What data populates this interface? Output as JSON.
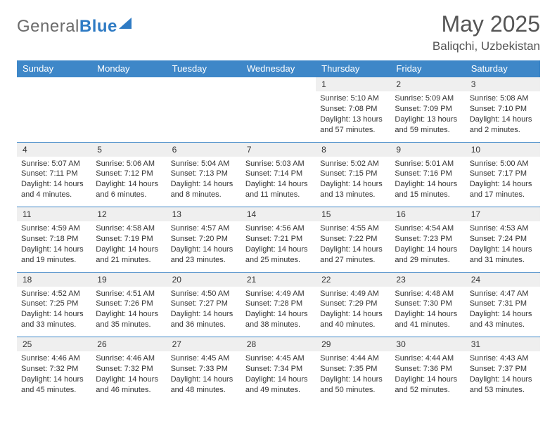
{
  "logo": {
    "text_gray": "General",
    "text_blue": "Blue"
  },
  "title": "May 2025",
  "location": "Baliqchi, Uzbekistan",
  "colors": {
    "header_bg": "#3e87c8",
    "header_text": "#ffffff",
    "daynum_bg": "#efefef",
    "day_border": "#3e87c8",
    "text": "#333333",
    "logo_gray": "#6b6b6b",
    "logo_blue": "#2f7bc4"
  },
  "day_headers": [
    "Sunday",
    "Monday",
    "Tuesday",
    "Wednesday",
    "Thursday",
    "Friday",
    "Saturday"
  ],
  "weeks": [
    [
      null,
      null,
      null,
      null,
      {
        "n": "1",
        "sr": "5:10 AM",
        "ss": "7:08 PM",
        "dl": "13 hours and 57 minutes."
      },
      {
        "n": "2",
        "sr": "5:09 AM",
        "ss": "7:09 PM",
        "dl": "13 hours and 59 minutes."
      },
      {
        "n": "3",
        "sr": "5:08 AM",
        "ss": "7:10 PM",
        "dl": "14 hours and 2 minutes."
      }
    ],
    [
      {
        "n": "4",
        "sr": "5:07 AM",
        "ss": "7:11 PM",
        "dl": "14 hours and 4 minutes."
      },
      {
        "n": "5",
        "sr": "5:06 AM",
        "ss": "7:12 PM",
        "dl": "14 hours and 6 minutes."
      },
      {
        "n": "6",
        "sr": "5:04 AM",
        "ss": "7:13 PM",
        "dl": "14 hours and 8 minutes."
      },
      {
        "n": "7",
        "sr": "5:03 AM",
        "ss": "7:14 PM",
        "dl": "14 hours and 11 minutes."
      },
      {
        "n": "8",
        "sr": "5:02 AM",
        "ss": "7:15 PM",
        "dl": "14 hours and 13 minutes."
      },
      {
        "n": "9",
        "sr": "5:01 AM",
        "ss": "7:16 PM",
        "dl": "14 hours and 15 minutes."
      },
      {
        "n": "10",
        "sr": "5:00 AM",
        "ss": "7:17 PM",
        "dl": "14 hours and 17 minutes."
      }
    ],
    [
      {
        "n": "11",
        "sr": "4:59 AM",
        "ss": "7:18 PM",
        "dl": "14 hours and 19 minutes."
      },
      {
        "n": "12",
        "sr": "4:58 AM",
        "ss": "7:19 PM",
        "dl": "14 hours and 21 minutes."
      },
      {
        "n": "13",
        "sr": "4:57 AM",
        "ss": "7:20 PM",
        "dl": "14 hours and 23 minutes."
      },
      {
        "n": "14",
        "sr": "4:56 AM",
        "ss": "7:21 PM",
        "dl": "14 hours and 25 minutes."
      },
      {
        "n": "15",
        "sr": "4:55 AM",
        "ss": "7:22 PM",
        "dl": "14 hours and 27 minutes."
      },
      {
        "n": "16",
        "sr": "4:54 AM",
        "ss": "7:23 PM",
        "dl": "14 hours and 29 minutes."
      },
      {
        "n": "17",
        "sr": "4:53 AM",
        "ss": "7:24 PM",
        "dl": "14 hours and 31 minutes."
      }
    ],
    [
      {
        "n": "18",
        "sr": "4:52 AM",
        "ss": "7:25 PM",
        "dl": "14 hours and 33 minutes."
      },
      {
        "n": "19",
        "sr": "4:51 AM",
        "ss": "7:26 PM",
        "dl": "14 hours and 35 minutes."
      },
      {
        "n": "20",
        "sr": "4:50 AM",
        "ss": "7:27 PM",
        "dl": "14 hours and 36 minutes."
      },
      {
        "n": "21",
        "sr": "4:49 AM",
        "ss": "7:28 PM",
        "dl": "14 hours and 38 minutes."
      },
      {
        "n": "22",
        "sr": "4:49 AM",
        "ss": "7:29 PM",
        "dl": "14 hours and 40 minutes."
      },
      {
        "n": "23",
        "sr": "4:48 AM",
        "ss": "7:30 PM",
        "dl": "14 hours and 41 minutes."
      },
      {
        "n": "24",
        "sr": "4:47 AM",
        "ss": "7:31 PM",
        "dl": "14 hours and 43 minutes."
      }
    ],
    [
      {
        "n": "25",
        "sr": "4:46 AM",
        "ss": "7:32 PM",
        "dl": "14 hours and 45 minutes."
      },
      {
        "n": "26",
        "sr": "4:46 AM",
        "ss": "7:32 PM",
        "dl": "14 hours and 46 minutes."
      },
      {
        "n": "27",
        "sr": "4:45 AM",
        "ss": "7:33 PM",
        "dl": "14 hours and 48 minutes."
      },
      {
        "n": "28",
        "sr": "4:45 AM",
        "ss": "7:34 PM",
        "dl": "14 hours and 49 minutes."
      },
      {
        "n": "29",
        "sr": "4:44 AM",
        "ss": "7:35 PM",
        "dl": "14 hours and 50 minutes."
      },
      {
        "n": "30",
        "sr": "4:44 AM",
        "ss": "7:36 PM",
        "dl": "14 hours and 52 minutes."
      },
      {
        "n": "31",
        "sr": "4:43 AM",
        "ss": "7:37 PM",
        "dl": "14 hours and 53 minutes."
      }
    ]
  ],
  "labels": {
    "sunrise": "Sunrise:",
    "sunset": "Sunset:",
    "daylight": "Daylight:"
  }
}
